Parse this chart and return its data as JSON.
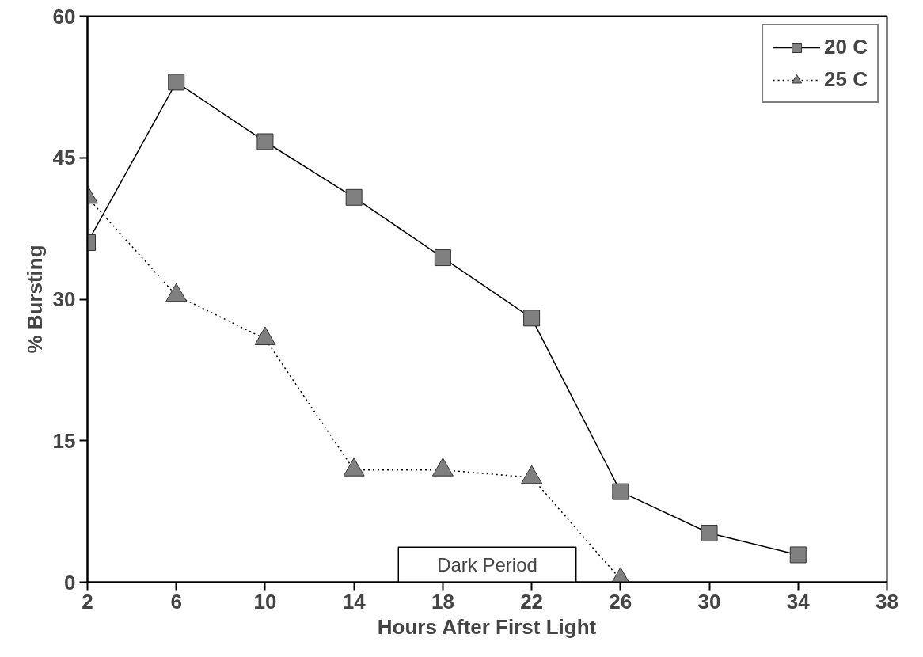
{
  "chart_data": {
    "type": "line",
    "xlabel": "Hours After First Light",
    "ylabel": "% Bursting",
    "x": [
      2,
      6,
      10,
      14,
      18,
      22,
      26,
      30,
      34
    ],
    "series": [
      {
        "name": "20 C",
        "color": "#808080",
        "marker": "square",
        "line_style": "solid",
        "values": [
          36,
          53,
          46.7,
          40.8,
          34.4,
          28,
          9.6,
          5.2,
          2.9
        ]
      },
      {
        "name": "25 C",
        "color": "#808080",
        "marker": "triangle",
        "line_style": "dotted",
        "values": [
          40.8,
          30.4,
          25.8,
          11.9,
          11.9,
          11.1,
          0.3,
          null,
          null
        ]
      }
    ],
    "xlim": [
      2,
      38
    ],
    "xticks": [
      2,
      6,
      10,
      14,
      18,
      22,
      26,
      30,
      34,
      38
    ],
    "ylim": [
      0,
      60
    ],
    "yticks": [
      0,
      15,
      30,
      45,
      60
    ],
    "bands": [
      {
        "axis": "x",
        "from": 16,
        "to": 24,
        "label": "Dark Period"
      }
    ],
    "grid": false,
    "legend": "top right"
  }
}
